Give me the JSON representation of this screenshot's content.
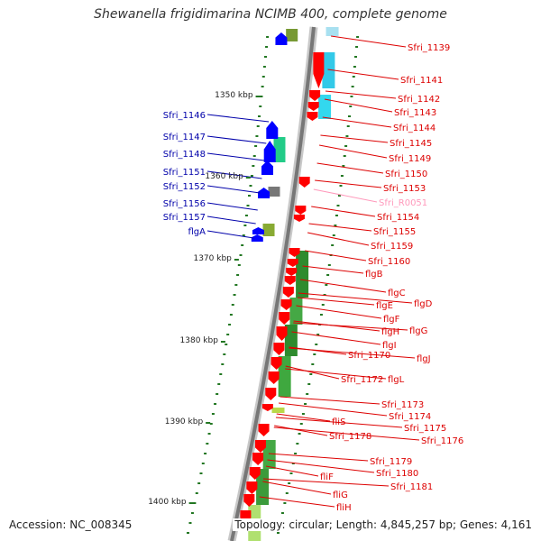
{
  "title": "Shewanella frigidimarina NCIMB 400, complete genome",
  "accession": "Accession: NC_008345",
  "topology": "Topology: circular; Length: 4,845,257 bp; Genes: 4,161",
  "colors": {
    "forward_label": "#0000aa",
    "reverse_label": "#dd0000",
    "rna_label": "#ff99bb",
    "forward_arrow": "#0000ff",
    "reverse_arrow": "#ff0000",
    "backbone": "#888888",
    "tick": "#227722"
  },
  "kbp_ticks": [
    "1350 kbp",
    "1360 kbp",
    "1370 kbp",
    "1380 kbp",
    "1390 kbp",
    "1400 kbp"
  ],
  "left_labels": [
    "Sfri_1146",
    "Sfri_1147",
    "Sfri_1148",
    "Sfri_1151",
    "Sfri_1152",
    "Sfri_1156",
    "Sfri_1157",
    "flgA"
  ],
  "right_labels": [
    {
      "text": "Sfri_1139",
      "type": "cds"
    },
    {
      "text": "Sfri_1141",
      "type": "cds"
    },
    {
      "text": "Sfri_1142",
      "type": "cds"
    },
    {
      "text": "Sfri_1143",
      "type": "cds"
    },
    {
      "text": "Sfri_1144",
      "type": "cds"
    },
    {
      "text": "Sfri_1145",
      "type": "cds"
    },
    {
      "text": "Sfri_1149",
      "type": "cds"
    },
    {
      "text": "Sfri_1150",
      "type": "cds"
    },
    {
      "text": "Sfri_1153",
      "type": "cds"
    },
    {
      "text": "Sfri_R0051",
      "type": "rna"
    },
    {
      "text": "Sfri_1154",
      "type": "cds"
    },
    {
      "text": "Sfri_1155",
      "type": "cds"
    },
    {
      "text": "Sfri_1159",
      "type": "cds"
    },
    {
      "text": "Sfri_1160",
      "type": "cds"
    },
    {
      "text": "flgB",
      "type": "cds"
    },
    {
      "text": "flgC",
      "type": "cds"
    },
    {
      "text": "flgD",
      "type": "cds"
    },
    {
      "text": "flgE",
      "type": "cds"
    },
    {
      "text": "flgF",
      "type": "cds"
    },
    {
      "text": "flgH",
      "type": "cds"
    },
    {
      "text": "flgG",
      "type": "cds"
    },
    {
      "text": "flgI",
      "type": "cds"
    },
    {
      "text": "flgJ",
      "type": "cds"
    },
    {
      "text": "Sfri_1170",
      "type": "cds"
    },
    {
      "text": "Sfri_1172",
      "type": "cds"
    },
    {
      "text": "flgL",
      "type": "cds"
    },
    {
      "text": "Sfri_1173",
      "type": "cds"
    },
    {
      "text": "Sfri_1174",
      "type": "cds"
    },
    {
      "text": "Sfri_1175",
      "type": "cds"
    },
    {
      "text": "fliS",
      "type": "cds"
    },
    {
      "text": "Sfri_1176",
      "type": "cds"
    },
    {
      "text": "Sfri_1178",
      "type": "cds"
    },
    {
      "text": "Sfri_1179",
      "type": "cds"
    },
    {
      "text": "Sfri_1180",
      "type": "cds"
    },
    {
      "text": "fliF",
      "type": "cds"
    },
    {
      "text": "Sfri_1181",
      "type": "cds"
    },
    {
      "text": "fliG",
      "type": "cds"
    },
    {
      "text": "fliH",
      "type": "cds"
    }
  ]
}
